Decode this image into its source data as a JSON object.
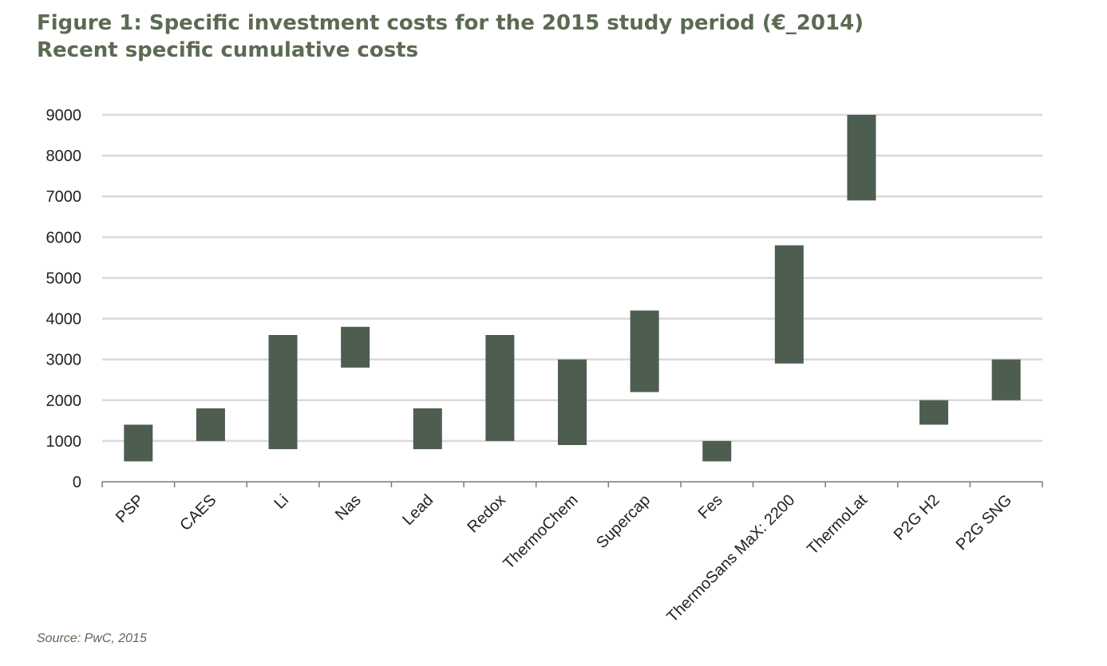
{
  "header": {
    "title": "Figure 1: Specific investment costs for the 2015 study period (€_2014)",
    "subtitle": "Recent specific cumulative costs"
  },
  "source": "Source: PwC, 2015",
  "chart_data": {
    "type": "bar",
    "subtype": "floating-range",
    "title": "Figure 1: Specific investment costs for the 2015 study period (€_2014)",
    "subtitle": "Recent specific cumulative costs",
    "categories": [
      "PSP",
      "CAES",
      "Li",
      "Nas",
      "Lead",
      "Redox",
      "ThermoChem",
      "Supercap",
      "Fes",
      "ThermoSans MaX: 2200",
      "ThermoLat",
      "P2G H2",
      "P2G SNG"
    ],
    "series": [
      {
        "low": [
          500,
          1000,
          800,
          2800,
          800,
          1000,
          900,
          2200,
          500,
          2900,
          6900,
          1400,
          2000
        ],
        "high": [
          1400,
          1800,
          3600,
          3800,
          1800,
          3600,
          3000,
          4200,
          1000,
          5800,
          9000,
          2000,
          3000
        ]
      }
    ],
    "yticks": [
      "0",
      "1000",
      "2000",
      "3000",
      "4000",
      "5000",
      "6000",
      "7000",
      "8000",
      "9000"
    ],
    "ylim": [
      0,
      9000
    ],
    "xlabel": "",
    "ylabel": "",
    "grid": true,
    "bar_color": "#4d5d50",
    "grid_color": "#d9d9d9"
  }
}
